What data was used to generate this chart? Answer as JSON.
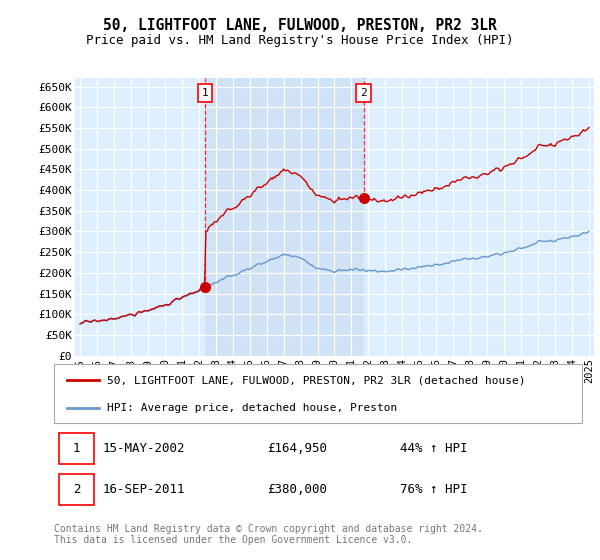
{
  "title_line1": "50, LIGHTFOOT LANE, FULWOOD, PRESTON, PR2 3LR",
  "title_line2": "Price paid vs. HM Land Registry's House Price Index (HPI)",
  "ylabel_ticks": [
    "£0",
    "£50K",
    "£100K",
    "£150K",
    "£200K",
    "£250K",
    "£300K",
    "£350K",
    "£400K",
    "£450K",
    "£500K",
    "£550K",
    "£600K",
    "£650K"
  ],
  "ytick_values": [
    0,
    50000,
    100000,
    150000,
    200000,
    250000,
    300000,
    350000,
    400000,
    450000,
    500000,
    550000,
    600000,
    650000
  ],
  "ylim": [
    0,
    670000
  ],
  "xlim_start": 1994.7,
  "xlim_end": 2025.3,
  "xticks": [
    1995,
    1996,
    1997,
    1998,
    1999,
    2000,
    2001,
    2002,
    2003,
    2004,
    2005,
    2006,
    2007,
    2008,
    2009,
    2010,
    2011,
    2012,
    2013,
    2014,
    2015,
    2016,
    2017,
    2018,
    2019,
    2020,
    2021,
    2022,
    2023,
    2024,
    2025
  ],
  "sale1_x": 2002.37,
  "sale1_y": 164950,
  "sale2_x": 2011.71,
  "sale2_y": 380000,
  "property_line_color": "#cc0000",
  "hpi_line_color": "#6699cc",
  "plot_bg_color": "#ddeeff",
  "highlight_color": "#c8d8ee",
  "legend_label1": "50, LIGHTFOOT LANE, FULWOOD, PRESTON, PR2 3LR (detached house)",
  "legend_label2": "HPI: Average price, detached house, Preston",
  "footer_text": "Contains HM Land Registry data © Crown copyright and database right 2024.\nThis data is licensed under the Open Government Licence v3.0."
}
